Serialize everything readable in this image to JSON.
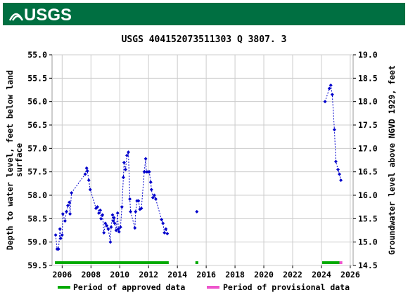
{
  "header": {
    "logo_text": "USGS",
    "brand_color": "#006f41"
  },
  "chart_data": {
    "type": "scatter",
    "title": "USGS 404152073511303 Q  3807. 3",
    "ylabel_left": [
      "Depth to water level, feet below land",
      "surface"
    ],
    "ylabel_right": "Groundwater level above NGVD 1929, feet",
    "x_ticks": [
      "2006",
      "2008",
      "2010",
      "2012",
      "2014",
      "2016",
      "2018",
      "2020",
      "2022",
      "2024",
      "2026"
    ],
    "y_left_ticks": [
      "55.0",
      "55.5",
      "56.0",
      "56.5",
      "57.0",
      "57.5",
      "58.0",
      "58.5",
      "59.0",
      "59.5"
    ],
    "y_right_ticks": [
      "19.0",
      "18.5",
      "18.0",
      "17.5",
      "17.0",
      "16.5",
      "16.0",
      "15.5",
      "15.0",
      "14.5"
    ],
    "xlim": [
      2005.3,
      2026.2
    ],
    "ylim_left": [
      55.0,
      59.5
    ],
    "ylim_right": [
      19.0,
      14.5
    ],
    "grid": true,
    "marker_color": "#0000cc",
    "series": [
      {
        "values": [
          [
            2005.55,
            58.85
          ],
          [
            2005.65,
            59.15
          ],
          [
            2005.75,
            59.15
          ],
          [
            2005.85,
            58.72
          ],
          [
            2005.9,
            58.92
          ],
          [
            2006.0,
            58.85
          ],
          [
            2006.05,
            58.4
          ],
          [
            2006.2,
            58.55
          ],
          [
            2006.3,
            58.35
          ],
          [
            2006.4,
            58.22
          ],
          [
            2006.5,
            58.15
          ],
          [
            2006.55,
            58.4
          ],
          [
            2006.65,
            57.95
          ],
          [
            2007.6,
            57.55
          ],
          [
            2007.7,
            57.42
          ],
          [
            2007.75,
            57.48
          ],
          [
            2007.85,
            57.68
          ],
          [
            2007.95,
            57.88
          ],
          [
            2008.35,
            58.28
          ],
          [
            2008.45,
            58.25
          ],
          [
            2008.55,
            58.38
          ],
          [
            2008.65,
            58.32
          ],
          [
            2008.7,
            58.5
          ],
          [
            2008.8,
            58.42
          ],
          [
            2008.9,
            58.8
          ],
          [
            2009.0,
            58.6
          ],
          [
            2009.1,
            58.65
          ],
          [
            2009.2,
            58.72
          ],
          [
            2009.35,
            59.0
          ],
          [
            2009.4,
            58.68
          ],
          [
            2009.5,
            58.42
          ],
          [
            2009.55,
            58.55
          ],
          [
            2009.6,
            58.48
          ],
          [
            2009.65,
            58.6
          ],
          [
            2009.75,
            58.75
          ],
          [
            2009.85,
            58.38
          ],
          [
            2009.9,
            58.72
          ],
          [
            2009.95,
            58.78
          ],
          [
            2010.05,
            58.68
          ],
          [
            2010.15,
            58.25
          ],
          [
            2010.25,
            57.62
          ],
          [
            2010.3,
            57.3
          ],
          [
            2010.4,
            57.45
          ],
          [
            2010.5,
            57.15
          ],
          [
            2010.6,
            57.08
          ],
          [
            2010.7,
            58.08
          ],
          [
            2010.75,
            58.35
          ],
          [
            2011.05,
            58.7
          ],
          [
            2011.1,
            58.35
          ],
          [
            2011.2,
            58.12
          ],
          [
            2011.3,
            58.12
          ],
          [
            2011.4,
            58.3
          ],
          [
            2011.5,
            58.28
          ],
          [
            2011.7,
            57.5
          ],
          [
            2011.8,
            57.22
          ],
          [
            2011.85,
            57.5
          ],
          [
            2011.95,
            57.5
          ],
          [
            2012.05,
            57.5
          ],
          [
            2012.15,
            57.72
          ],
          [
            2012.2,
            57.88
          ],
          [
            2012.3,
            58.05
          ],
          [
            2012.4,
            58.0
          ],
          [
            2012.5,
            58.08
          ],
          [
            2012.9,
            58.52
          ],
          [
            2013.0,
            58.6
          ],
          [
            2013.1,
            58.8
          ],
          [
            2013.2,
            58.72
          ],
          [
            2013.3,
            58.82
          ],
          [
            2015.35,
            58.35
          ]
        ]
      },
      {
        "values": [
          [
            2024.25,
            56.0
          ],
          [
            2024.55,
            55.72
          ],
          [
            2024.65,
            55.65
          ],
          [
            2024.75,
            55.85
          ],
          [
            2024.9,
            56.6
          ],
          [
            2025.0,
            57.28
          ],
          [
            2025.15,
            57.45
          ],
          [
            2025.25,
            57.55
          ],
          [
            2025.35,
            57.68
          ]
        ]
      }
    ],
    "approved_periods": [
      [
        2005.5,
        2013.4
      ],
      [
        2015.25,
        2015.45
      ],
      [
        2024.05,
        2025.25
      ]
    ],
    "provisional_periods": [
      [
        2025.25,
        2025.45
      ]
    ],
    "approved_color": "#00aa00",
    "provisional_color": "#ee55cc",
    "legend": [
      {
        "label": "Period of approved data",
        "color": "#00aa00"
      },
      {
        "label": "Period of provisional data",
        "color": "#ee55cc"
      }
    ]
  }
}
